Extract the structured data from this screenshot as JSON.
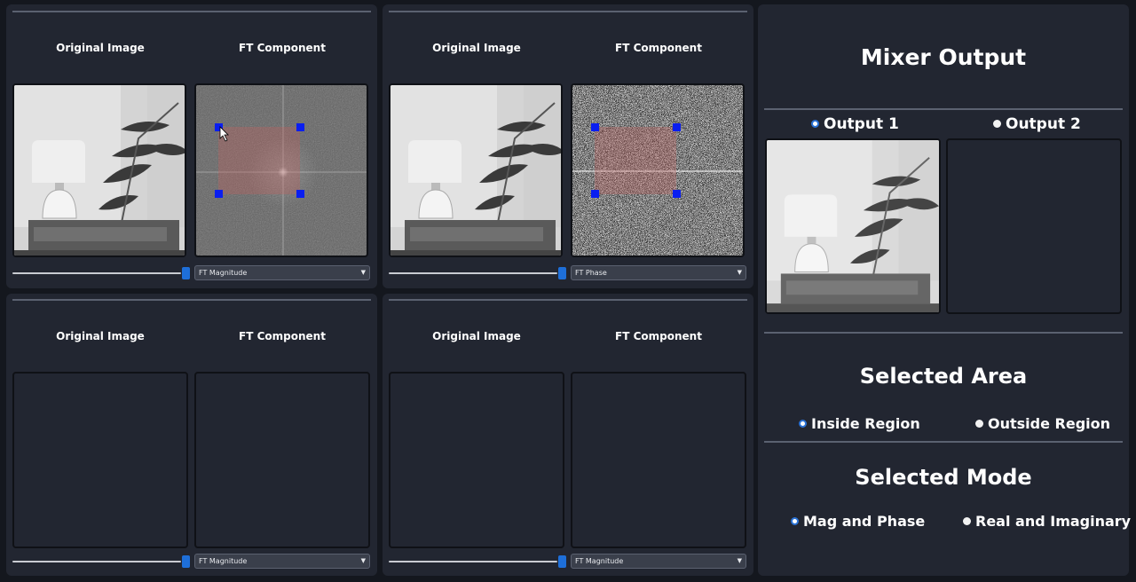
{
  "viewers": [
    {
      "original_label": "Original Image",
      "ft_label": "FT Component",
      "combo_value": "FT Magnitude",
      "weight_percent": 100,
      "has_image": true,
      "ft_type": "magnitude"
    },
    {
      "original_label": "Original Image",
      "ft_label": "FT Component",
      "combo_value": "FT Phase",
      "weight_percent": 100,
      "has_image": true,
      "ft_type": "phase"
    },
    {
      "original_label": "Original Image",
      "ft_label": "FT Component",
      "combo_value": "FT Magnitude",
      "weight_percent": 100,
      "has_image": false,
      "ft_type": "magnitude"
    },
    {
      "original_label": "Original Image",
      "ft_label": "FT Component",
      "combo_value": "FT Magnitude",
      "weight_percent": 100,
      "has_image": false,
      "ft_type": "magnitude"
    }
  ],
  "mixer": {
    "title": "Mixer Output",
    "output1_label": "Output 1",
    "output2_label": "Output 2",
    "selected_output": "Output 1"
  },
  "area": {
    "title": "Selected Area",
    "inside_label": "Inside Region",
    "outside_label": "Outside Region",
    "selected": "Inside Region"
  },
  "mode": {
    "title": "Selected Mode",
    "magphase_label": "Mag and Phase",
    "realimag_label": "Real and Imaginary",
    "selected": "Mag and Phase"
  },
  "colors": {
    "accent": "#1e6fd9",
    "handle": "#0a1ef0",
    "region": "#c0605e",
    "panel": "#222631",
    "background": "#14171e"
  },
  "icons": [
    "cursor-arrow-icon",
    "chevron-down-icon"
  ]
}
